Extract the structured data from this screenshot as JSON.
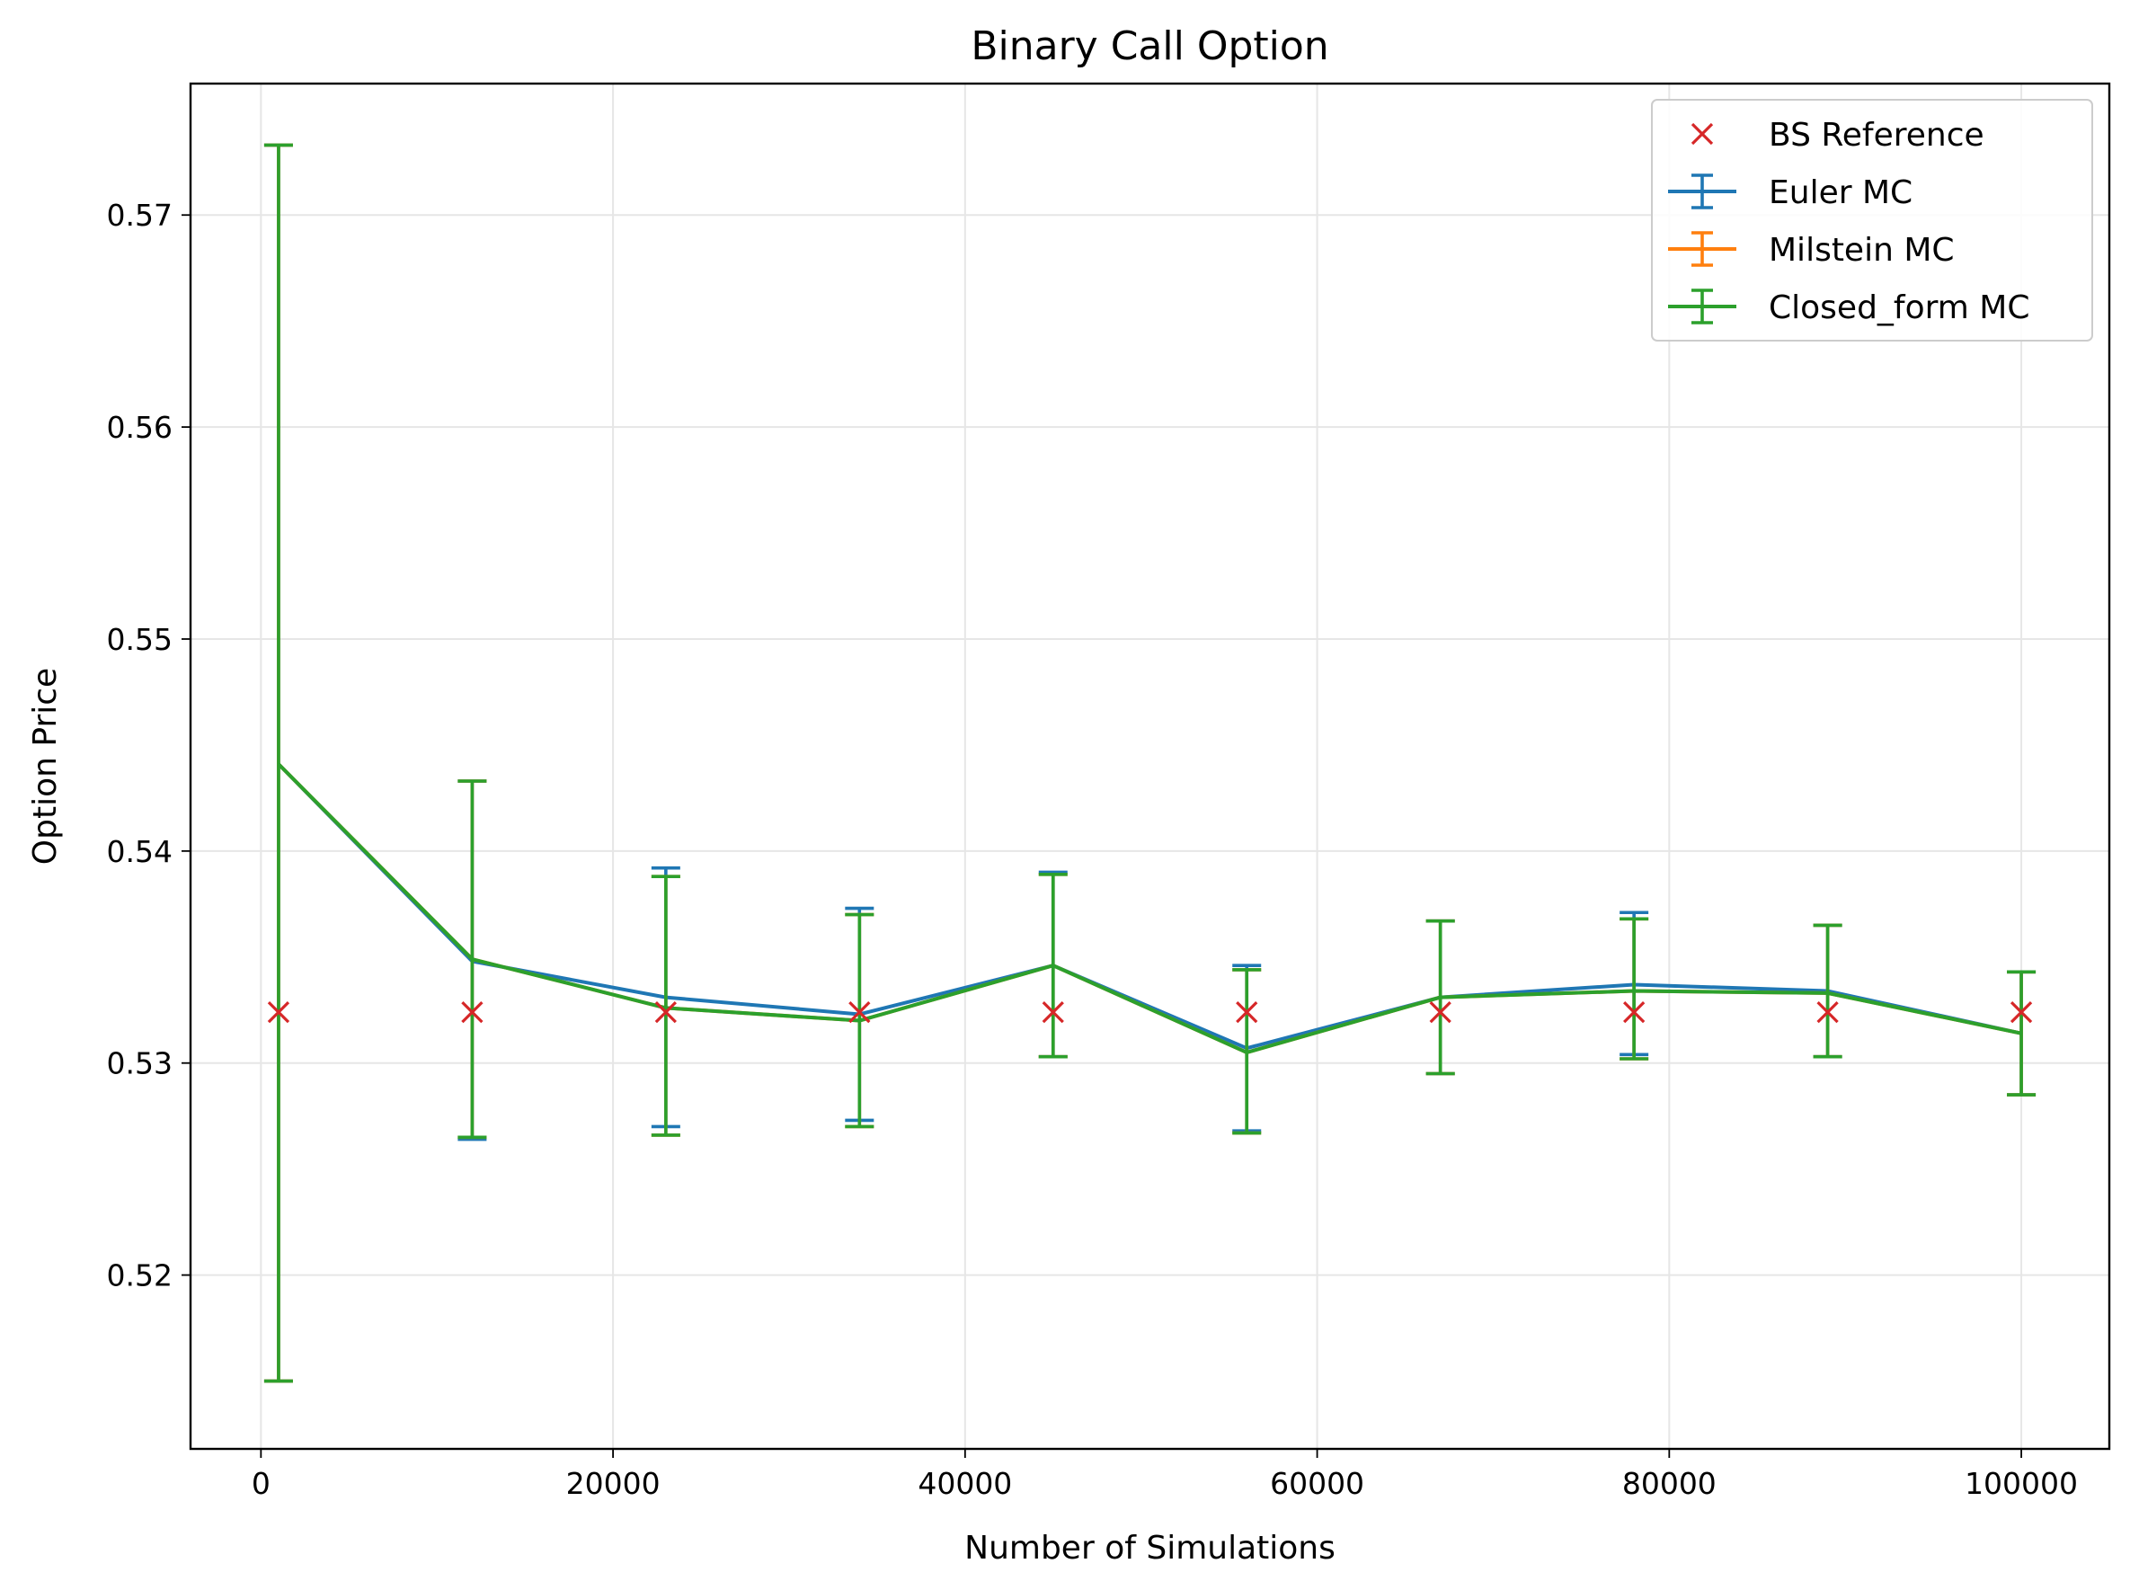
{
  "chart_data": {
    "type": "line",
    "title": "Binary Call Option",
    "xlabel": "Number of Simulations",
    "ylabel": "Option Price",
    "xlim": [
      -4000,
      105000
    ],
    "ylim": [
      0.5118,
      0.5762
    ],
    "xticks": [
      0,
      20000,
      40000,
      60000,
      80000,
      100000
    ],
    "yticks": [
      0.52,
      0.53,
      0.54,
      0.55,
      0.56,
      0.57
    ],
    "ytick_labels": [
      "0.52",
      "0.53",
      "0.54",
      "0.55",
      "0.56",
      "0.57"
    ],
    "grid": true,
    "legend_position": "top-right",
    "x": [
      1000,
      12000,
      23000,
      34000,
      45000,
      56000,
      67000,
      78000,
      89000,
      100000
    ],
    "reference": {
      "name": "BS Reference",
      "color": "#d62728",
      "marker": "x",
      "values": [
        0.5324,
        0.5324,
        0.5324,
        0.5324,
        0.5324,
        0.5324,
        0.5324,
        0.5324,
        0.5324,
        0.5324
      ]
    },
    "series": [
      {
        "name": "Euler MC",
        "color": "#1f77b4",
        "values": [
          0.5441,
          0.5348,
          0.5331,
          0.5323,
          0.5346,
          0.5307,
          0.5331,
          0.5337,
          0.5334,
          0.5314
        ],
        "err_low": [
          0.515,
          0.5264,
          0.527,
          0.5273,
          0.5303,
          0.5268,
          0.5295,
          0.5304,
          0.5303,
          0.5285
        ],
        "err_high": [
          0.5733,
          0.5433,
          0.5392,
          0.5373,
          0.539,
          0.5346,
          0.5367,
          0.5371,
          0.5365,
          0.5343
        ]
      },
      {
        "name": "Milstein MC",
        "color": "#ff7f0e",
        "values": [
          0.5441,
          0.5349,
          0.5326,
          0.532,
          0.5346,
          0.5305,
          0.5331,
          0.5334,
          0.5333,
          0.5314
        ],
        "err_low": [
          0.515,
          0.5265,
          0.5266,
          0.527,
          0.5303,
          0.5267,
          0.5295,
          0.5302,
          0.5303,
          0.5285
        ],
        "err_high": [
          0.5733,
          0.5433,
          0.5388,
          0.537,
          0.5389,
          0.5344,
          0.5367,
          0.5368,
          0.5365,
          0.5343
        ]
      },
      {
        "name": "Closed_form MC",
        "color": "#2ca02c",
        "values": [
          0.5441,
          0.5349,
          0.5326,
          0.532,
          0.5346,
          0.5305,
          0.5331,
          0.5334,
          0.5333,
          0.5314
        ],
        "err_low": [
          0.515,
          0.5265,
          0.5266,
          0.527,
          0.5303,
          0.5267,
          0.5295,
          0.5302,
          0.5303,
          0.5285
        ],
        "err_high": [
          0.5733,
          0.5433,
          0.5388,
          0.537,
          0.5389,
          0.5344,
          0.5367,
          0.5368,
          0.5365,
          0.5343
        ]
      }
    ]
  }
}
